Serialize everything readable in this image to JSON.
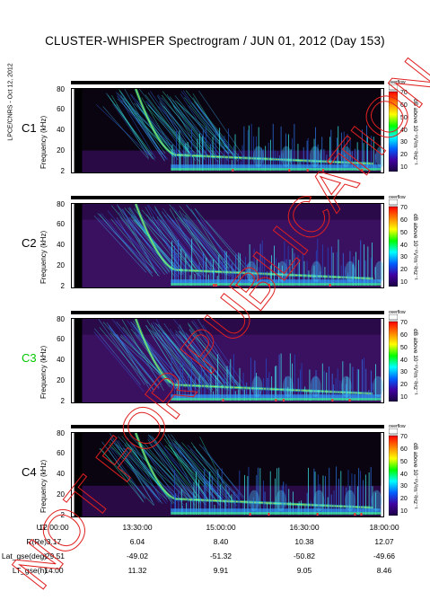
{
  "title": "CLUSTER-WHISPER Spectrogram / JUN 01, 2012 (Day 153)",
  "side_note": "LPCE/CNRS - Oct 12, 2012",
  "watermark": "NOT FOR PUBLICATION",
  "colorbar": {
    "label": "dB above 10⁻⁸V²m⁻²Hz⁻¹",
    "overflow_label": "overflow",
    "ticks": [
      "70",
      "60",
      "50",
      "40",
      "30",
      "20",
      "10"
    ],
    "colors": [
      "#ff0000",
      "#ff8000",
      "#ffff00",
      "#00ff00",
      "#00ffff",
      "#0060ff",
      "#4000a0",
      "#1a0040"
    ]
  },
  "chart_data": [
    {
      "type": "heatmap",
      "panel": "C1",
      "label_color": "#000000",
      "ylabel": "Frequency (kHz)",
      "yticks": [
        "80",
        "60",
        "40",
        "20",
        "2"
      ],
      "ylim": [
        2,
        80
      ],
      "xlim": [
        "12:00:00",
        "18:00:00"
      ],
      "clim": [
        10,
        70
      ]
    },
    {
      "type": "heatmap",
      "panel": "C2",
      "label_color": "#000000",
      "ylabel": "Frequency (kHz)",
      "yticks": [
        "80",
        "60",
        "40",
        "20",
        "2"
      ],
      "ylim": [
        2,
        80
      ],
      "xlim": [
        "12:00:00",
        "18:00:00"
      ],
      "clim": [
        10,
        70
      ]
    },
    {
      "type": "heatmap",
      "panel": "C3",
      "label_color": "#00c800",
      "ylabel": "Frequency (kHz)",
      "yticks": [
        "80",
        "60",
        "40",
        "20",
        "2"
      ],
      "ylim": [
        2,
        80
      ],
      "xlim": [
        "12:00:00",
        "18:00:00"
      ],
      "clim": [
        10,
        70
      ]
    },
    {
      "type": "heatmap",
      "panel": "C4",
      "label_color": "#000000",
      "ylabel": "Frequency (kHz)",
      "yticks": [
        "80",
        "60",
        "40",
        "20",
        "2"
      ],
      "ylim": [
        2,
        80
      ],
      "xlim": [
        "12:00:00",
        "18:00:00"
      ],
      "clim": [
        10,
        70
      ]
    }
  ],
  "ephemeris": {
    "rows": [
      {
        "label": "UT",
        "values": [
          "12:00:00",
          "13:30:00",
          "15:00:00",
          "16:30:00",
          "18:00:00"
        ]
      },
      {
        "label": "R(Re)",
        "values": [
          "3.17",
          "6.04",
          "8.40",
          "10.38",
          "12.07"
        ]
      },
      {
        "label": "Lat_gse(deg)",
        "values": [
          "-29.51",
          "-49.02",
          "-51.32",
          "-50.82",
          "-49.66"
        ]
      },
      {
        "label": "LT_gse(h)",
        "values": [
          "14.00",
          "11.32",
          "9.91",
          "9.05",
          "8.46"
        ]
      }
    ]
  }
}
